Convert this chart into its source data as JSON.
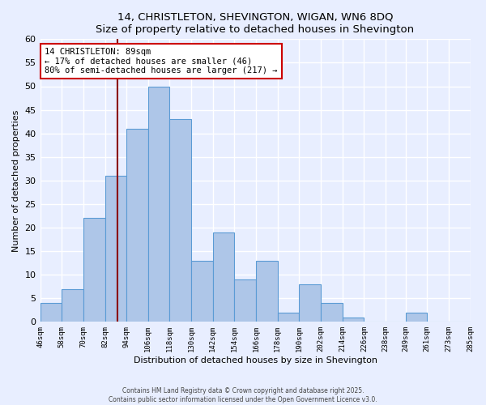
{
  "title": "14, CHRISTLETON, SHEVINGTON, WIGAN, WN6 8DQ",
  "subtitle": "Size of property relative to detached houses in Shevington",
  "xlabel": "Distribution of detached houses by size in Shevington",
  "ylabel": "Number of detached properties",
  "bin_edges": [
    46,
    58,
    70,
    82,
    94,
    106,
    118,
    130,
    142,
    154,
    166,
    178,
    190,
    202,
    214,
    226,
    238,
    249,
    261,
    273,
    285
  ],
  "counts": [
    4,
    7,
    22,
    31,
    41,
    50,
    43,
    13,
    19,
    9,
    13,
    2,
    8,
    4,
    1,
    0,
    0,
    2,
    0,
    0
  ],
  "bar_color": "#aec6e8",
  "bar_edge_color": "#5b9bd5",
  "property_size": 89,
  "marker_line_color": "#8b0000",
  "annotation_text": "14 CHRISTLETON: 89sqm\n← 17% of detached houses are smaller (46)\n80% of semi-detached houses are larger (217) →",
  "annotation_box_color": "white",
  "annotation_box_edge_color": "#cc0000",
  "ylim": [
    0,
    60
  ],
  "yticks": [
    0,
    5,
    10,
    15,
    20,
    25,
    30,
    35,
    40,
    45,
    50,
    55,
    60
  ],
  "background_color": "#e8eeff",
  "grid_color": "white",
  "footer_line1": "Contains HM Land Registry data © Crown copyright and database right 2025.",
  "footer_line2": "Contains public sector information licensed under the Open Government Licence v3.0.",
  "tick_labels": [
    "46sqm",
    "58sqm",
    "70sqm",
    "82sqm",
    "94sqm",
    "106sqm",
    "118sqm",
    "130sqm",
    "142sqm",
    "154sqm",
    "166sqm",
    "178sqm",
    "190sqm",
    "202sqm",
    "214sqm",
    "226sqm",
    "238sqm",
    "249sqm",
    "261sqm",
    "273sqm",
    "285sqm"
  ]
}
